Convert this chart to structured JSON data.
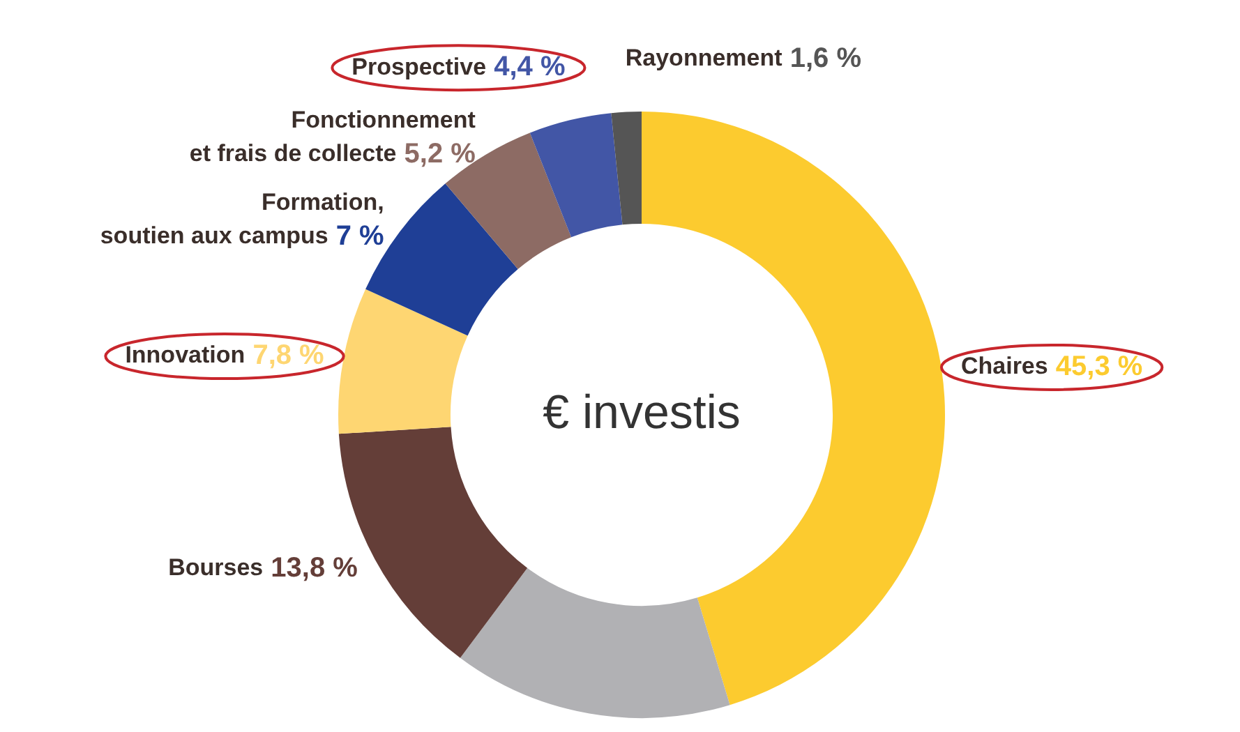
{
  "chart_data": {
    "type": "donut",
    "title": "€ investis",
    "categories": [
      "Chaires",
      null,
      "Bourses",
      "Innovation",
      "Formation, soutien aux campus",
      "Fonctionnement et frais de collecte",
      "Prospective",
      "Rayonnement"
    ],
    "values": [
      45.3,
      14.9,
      13.8,
      7.8,
      7,
      5.2,
      4.4,
      1.6
    ],
    "value_labels": [
      "45,3 %",
      null,
      "13,8 %",
      "7,8 %",
      "7 %",
      "5,2 %",
      "4,4 %",
      "1,6 %"
    ],
    "colors": [
      "#fccb2f",
      "#b1b1b4",
      "#643e38",
      "#fed672",
      "#1f3f96",
      "#8d6b64",
      "#4256a6",
      "#555555"
    ],
    "legend": false
  }
}
